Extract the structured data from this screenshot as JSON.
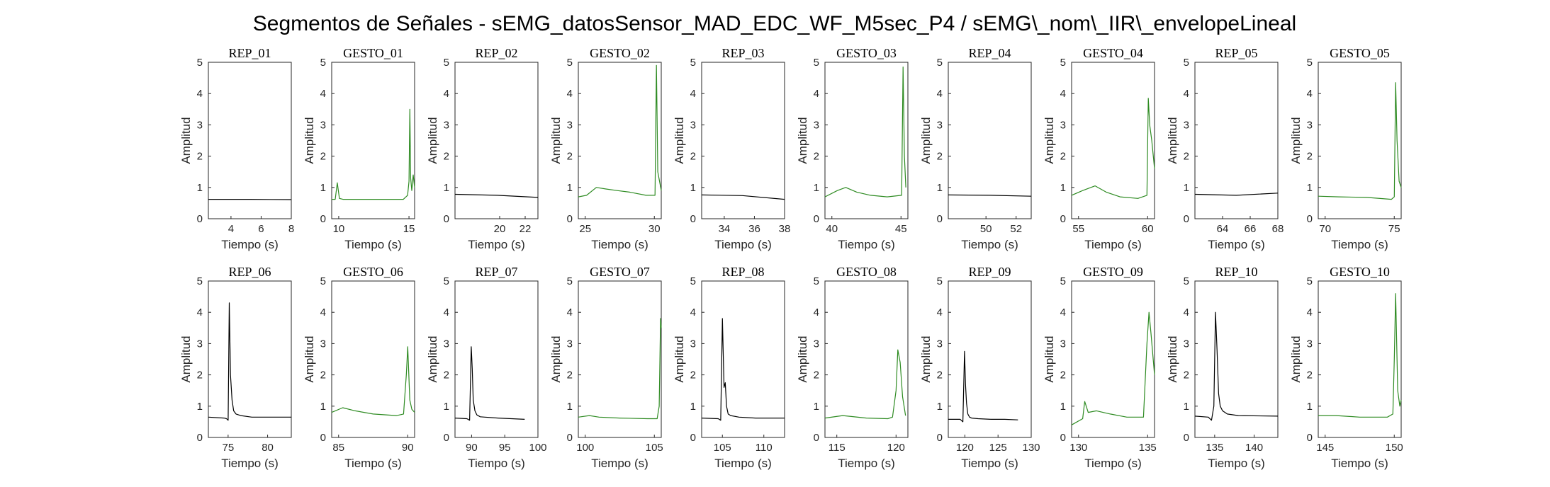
{
  "figure_title": "Segmentos de Señales - sEMG_datosSensor_MAD_EDC_WF_M5sec_P4 / sEMG\\_nom\\_IIR\\_envelopeLineal",
  "colors": {
    "rep": "#000000",
    "gesto": "#2e8b22",
    "axis": "#262626"
  },
  "chart_data": [
    {
      "title": "REP_01",
      "type": "line",
      "color": "rep",
      "xlabel": "Tiempo (s)",
      "ylabel": "Amplitud",
      "xlim": [
        2.5,
        8
      ],
      "ylim": [
        0,
        5
      ],
      "xticks": [
        4,
        6,
        8
      ],
      "yticks": [
        0,
        1,
        2,
        3,
        4,
        5
      ],
      "x": [
        2.5,
        5.3,
        8
      ],
      "y": [
        0.62,
        0.62,
        0.61
      ]
    },
    {
      "title": "GESTO_01",
      "type": "line",
      "color": "gesto",
      "xlabel": "Tiempo (s)",
      "ylabel": "Amplitud",
      "xlim": [
        9.5,
        15.4
      ],
      "ylim": [
        0,
        5
      ],
      "xticks": [
        10,
        15
      ],
      "yticks": [
        0,
        1,
        2,
        3,
        4,
        5
      ],
      "x": [
        9.5,
        9.75,
        9.9,
        10.05,
        10.3,
        12.7,
        14.6,
        14.9,
        15.0,
        15.06,
        15.12,
        15.2,
        15.3,
        15.4
      ],
      "y": [
        0.62,
        0.62,
        1.15,
        0.65,
        0.62,
        0.62,
        0.62,
        0.75,
        1.2,
        3.5,
        1.3,
        0.9,
        1.4,
        1.0
      ]
    },
    {
      "title": "REP_02",
      "type": "line",
      "color": "rep",
      "xlabel": "Tiempo (s)",
      "ylabel": "Amplitud",
      "xlim": [
        16.5,
        23
      ],
      "ylim": [
        0,
        5
      ],
      "xticks": [
        20,
        22
      ],
      "yticks": [
        0,
        1,
        2,
        3,
        4,
        5
      ],
      "x": [
        16.5,
        19.8,
        23
      ],
      "y": [
        0.78,
        0.75,
        0.68
      ]
    },
    {
      "title": "GESTO_02",
      "type": "line",
      "color": "gesto",
      "xlabel": "Tiempo (s)",
      "ylabel": "Amplitud",
      "xlim": [
        24.5,
        30.5
      ],
      "ylim": [
        0,
        5
      ],
      "xticks": [
        25,
        30
      ],
      "yticks": [
        0,
        1,
        2,
        3,
        4,
        5
      ],
      "x": [
        24.5,
        25.1,
        25.8,
        26.5,
        27.3,
        28.2,
        29.4,
        30.05,
        30.15,
        30.25,
        30.5
      ],
      "y": [
        0.7,
        0.75,
        1.0,
        0.95,
        0.9,
        0.85,
        0.75,
        0.75,
        4.9,
        1.5,
        0.9
      ]
    },
    {
      "title": "REP_03",
      "type": "line",
      "color": "rep",
      "xlabel": "Tiempo (s)",
      "ylabel": "Amplitud",
      "xlim": [
        32.5,
        38
      ],
      "ylim": [
        0,
        5
      ],
      "xticks": [
        34,
        36,
        38
      ],
      "yticks": [
        0,
        1,
        2,
        3,
        4,
        5
      ],
      "x": [
        32.5,
        35.2,
        38
      ],
      "y": [
        0.76,
        0.74,
        0.62
      ]
    },
    {
      "title": "GESTO_03",
      "type": "line",
      "color": "gesto",
      "xlabel": "Tiempo (s)",
      "ylabel": "Amplitud",
      "xlim": [
        39.5,
        45.5
      ],
      "ylim": [
        0,
        5
      ],
      "xticks": [
        40,
        45
      ],
      "yticks": [
        0,
        1,
        2,
        3,
        4,
        5
      ],
      "x": [
        39.5,
        40.4,
        41.0,
        41.8,
        42.8,
        44.0,
        45.05,
        45.15,
        45.25,
        45.35
      ],
      "y": [
        0.7,
        0.9,
        1.0,
        0.85,
        0.75,
        0.7,
        0.75,
        4.85,
        2.0,
        1.0
      ]
    },
    {
      "title": "REP_04",
      "type": "line",
      "color": "rep",
      "xlabel": "Tiempo (s)",
      "ylabel": "Amplitud",
      "xlim": [
        47.5,
        53
      ],
      "ylim": [
        0,
        5
      ],
      "xticks": [
        50,
        52
      ],
      "yticks": [
        0,
        1,
        2,
        3,
        4,
        5
      ],
      "x": [
        47.5,
        50.3,
        53
      ],
      "y": [
        0.76,
        0.75,
        0.72
      ]
    },
    {
      "title": "GESTO_04",
      "type": "line",
      "color": "gesto",
      "xlabel": "Tiempo (s)",
      "ylabel": "Amplitud",
      "xlim": [
        54.5,
        60.5
      ],
      "ylim": [
        0,
        5
      ],
      "xticks": [
        55,
        60
      ],
      "yticks": [
        0,
        1,
        2,
        3,
        4,
        5
      ],
      "x": [
        54.5,
        55.3,
        56.2,
        57.0,
        58.0,
        59.3,
        59.95,
        60.05,
        60.15,
        60.3,
        60.5
      ],
      "y": [
        0.75,
        0.9,
        1.05,
        0.85,
        0.7,
        0.65,
        0.75,
        3.85,
        3.0,
        2.5,
        1.6
      ]
    },
    {
      "title": "REP_05",
      "type": "line",
      "color": "rep",
      "xlabel": "Tiempo (s)",
      "ylabel": "Amplitud",
      "xlim": [
        62,
        68
      ],
      "ylim": [
        0,
        5
      ],
      "xticks": [
        64,
        66,
        68
      ],
      "yticks": [
        0,
        1,
        2,
        3,
        4,
        5
      ],
      "x": [
        62,
        65,
        68
      ],
      "y": [
        0.78,
        0.75,
        0.82
      ]
    },
    {
      "title": "GESTO_05",
      "type": "line",
      "color": "gesto",
      "xlabel": "Tiempo (s)",
      "ylabel": "Amplitud",
      "xlim": [
        69.5,
        75.5
      ],
      "ylim": [
        0,
        5
      ],
      "xticks": [
        70,
        75
      ],
      "yticks": [
        0,
        1,
        2,
        3,
        4,
        5
      ],
      "x": [
        69.5,
        71.0,
        73.0,
        74.8,
        75.0,
        75.1,
        75.2,
        75.35,
        75.5
      ],
      "y": [
        0.72,
        0.7,
        0.68,
        0.62,
        0.7,
        4.35,
        2.5,
        1.2,
        1.0
      ]
    },
    {
      "title": "REP_06",
      "type": "line",
      "color": "rep",
      "xlabel": "Tiempo (s)",
      "ylabel": "Amplitud",
      "xlim": [
        72.5,
        83
      ],
      "ylim": [
        0,
        5
      ],
      "xticks": [
        75,
        80
      ],
      "yticks": [
        0,
        1,
        2,
        3,
        4,
        5
      ],
      "x": [
        72.5,
        74.5,
        74.8,
        75.0,
        75.15,
        75.3,
        75.5,
        75.7,
        76.0,
        76.6,
        78,
        80,
        83
      ],
      "y": [
        0.65,
        0.62,
        0.6,
        0.55,
        4.3,
        2.0,
        1.2,
        0.85,
        0.75,
        0.7,
        0.65,
        0.65,
        0.65
      ]
    },
    {
      "title": "GESTO_06",
      "type": "line",
      "color": "gesto",
      "xlabel": "Tiempo (s)",
      "ylabel": "Amplitud",
      "xlim": [
        84.5,
        90.5
      ],
      "ylim": [
        0,
        5
      ],
      "xticks": [
        85,
        90
      ],
      "yticks": [
        0,
        1,
        2,
        3,
        4,
        5
      ],
      "x": [
        84.5,
        85.3,
        86.2,
        87.5,
        89.2,
        89.7,
        89.9,
        90.0,
        90.15,
        90.3,
        90.5
      ],
      "y": [
        0.8,
        0.95,
        0.85,
        0.75,
        0.7,
        0.75,
        2.0,
        2.9,
        1.2,
        0.9,
        0.8
      ]
    },
    {
      "title": "REP_07",
      "type": "line",
      "color": "rep",
      "xlabel": "Tiempo (s)",
      "ylabel": "Amplitud",
      "xlim": [
        87.5,
        100
      ],
      "ylim": [
        0,
        5
      ],
      "xticks": [
        90,
        95,
        100
      ],
      "yticks": [
        0,
        1,
        2,
        3,
        4,
        5
      ],
      "x": [
        87.5,
        89.3,
        89.7,
        89.95,
        90.1,
        90.25,
        90.5,
        90.8,
        91.3,
        92,
        94,
        96,
        98
      ],
      "y": [
        0.62,
        0.6,
        0.55,
        2.9,
        2.2,
        1.2,
        0.85,
        0.72,
        0.66,
        0.65,
        0.62,
        0.6,
        0.58
      ]
    },
    {
      "title": "GESTO_07",
      "type": "line",
      "color": "gesto",
      "xlabel": "Tiempo (s)",
      "ylabel": "Amplitud",
      "xlim": [
        99.5,
        105.5
      ],
      "ylim": [
        0,
        5
      ],
      "xticks": [
        100,
        105
      ],
      "yticks": [
        0,
        1,
        2,
        3,
        4,
        5
      ],
      "x": [
        99.5,
        100.3,
        101.0,
        102.5,
        104.5,
        105.2,
        105.35,
        105.45,
        105.5
      ],
      "y": [
        0.65,
        0.7,
        0.65,
        0.62,
        0.6,
        0.6,
        1.0,
        3.8,
        3.5
      ]
    },
    {
      "title": "REP_08",
      "type": "line",
      "color": "rep",
      "xlabel": "Tiempo (s)",
      "ylabel": "Amplitud",
      "xlim": [
        102.5,
        112.5
      ],
      "ylim": [
        0,
        5
      ],
      "xticks": [
        105,
        110
      ],
      "yticks": [
        0,
        1,
        2,
        3,
        4,
        5
      ],
      "x": [
        102.5,
        104.5,
        104.8,
        105.0,
        105.2,
        105.35,
        105.5,
        105.7,
        106.0,
        107,
        109,
        112.5
      ],
      "y": [
        0.62,
        0.6,
        0.55,
        3.8,
        1.6,
        1.75,
        1.0,
        0.75,
        0.7,
        0.65,
        0.62,
        0.62
      ]
    },
    {
      "title": "GESTO_08",
      "type": "line",
      "color": "gesto",
      "xlabel": "Tiempo (s)",
      "ylabel": "Amplitud",
      "xlim": [
        114,
        121
      ],
      "ylim": [
        0,
        5
      ],
      "xticks": [
        115,
        120
      ],
      "yticks": [
        0,
        1,
        2,
        3,
        4,
        5
      ],
      "x": [
        114,
        115.5,
        117.5,
        119.3,
        119.7,
        120.0,
        120.15,
        120.35,
        120.55,
        120.8
      ],
      "y": [
        0.62,
        0.7,
        0.62,
        0.6,
        0.65,
        1.5,
        2.8,
        2.4,
        1.3,
        0.7
      ]
    },
    {
      "title": "REP_09",
      "type": "line",
      "color": "rep",
      "xlabel": "Tiempo (s)",
      "ylabel": "Amplitud",
      "xlim": [
        117.5,
        130
      ],
      "ylim": [
        0,
        5
      ],
      "xticks": [
        120,
        125,
        130
      ],
      "yticks": [
        0,
        1,
        2,
        3,
        4,
        5
      ],
      "x": [
        117.5,
        119.3,
        119.7,
        119.95,
        120.1,
        120.25,
        120.45,
        120.7,
        121,
        122,
        124,
        126,
        128
      ],
      "y": [
        0.58,
        0.58,
        0.5,
        2.75,
        1.7,
        1.1,
        0.75,
        0.65,
        0.62,
        0.6,
        0.58,
        0.58,
        0.56
      ]
    },
    {
      "title": "GESTO_09",
      "type": "line",
      "color": "gesto",
      "xlabel": "Tiempo (s)",
      "ylabel": "Amplitud",
      "xlim": [
        129.5,
        135.5
      ],
      "ylim": [
        0,
        5
      ],
      "xticks": [
        130,
        135
      ],
      "yticks": [
        0,
        1,
        2,
        3,
        4,
        5
      ],
      "x": [
        129.5,
        130.3,
        130.45,
        130.7,
        131.3,
        132.3,
        133.5,
        134.7,
        134.95,
        135.1,
        135.25,
        135.5
      ],
      "y": [
        0.4,
        0.6,
        1.15,
        0.8,
        0.85,
        0.75,
        0.65,
        0.65,
        3.0,
        4.0,
        3.3,
        2.0
      ]
    },
    {
      "title": "REP_10",
      "type": "line",
      "color": "rep",
      "xlabel": "Tiempo (s)",
      "ylabel": "Amplitud",
      "xlim": [
        132.5,
        143
      ],
      "ylim": [
        0,
        5
      ],
      "xticks": [
        135,
        140
      ],
      "yticks": [
        0,
        1,
        2,
        3,
        4,
        5
      ],
      "x": [
        132.5,
        134.2,
        134.6,
        134.9,
        135.1,
        135.3,
        135.5,
        135.7,
        136,
        136.6,
        138,
        143
      ],
      "y": [
        0.68,
        0.65,
        0.55,
        1.0,
        4.0,
        2.8,
        1.4,
        1.0,
        0.85,
        0.75,
        0.7,
        0.68
      ]
    },
    {
      "title": "GESTO_10",
      "type": "line",
      "color": "gesto",
      "xlabel": "Tiempo (s)",
      "ylabel": "Amplitud",
      "xlim": [
        144.5,
        150.5
      ],
      "ylim": [
        0,
        5
      ],
      "xticks": [
        145,
        150
      ],
      "yticks": [
        0,
        1,
        2,
        3,
        4,
        5
      ],
      "x": [
        144.5,
        145.8,
        147.5,
        149.5,
        149.9,
        150.0,
        150.1,
        150.25,
        150.4,
        150.5
      ],
      "y": [
        0.7,
        0.7,
        0.65,
        0.65,
        0.75,
        2.5,
        4.6,
        1.5,
        1.0,
        1.2
      ]
    }
  ]
}
